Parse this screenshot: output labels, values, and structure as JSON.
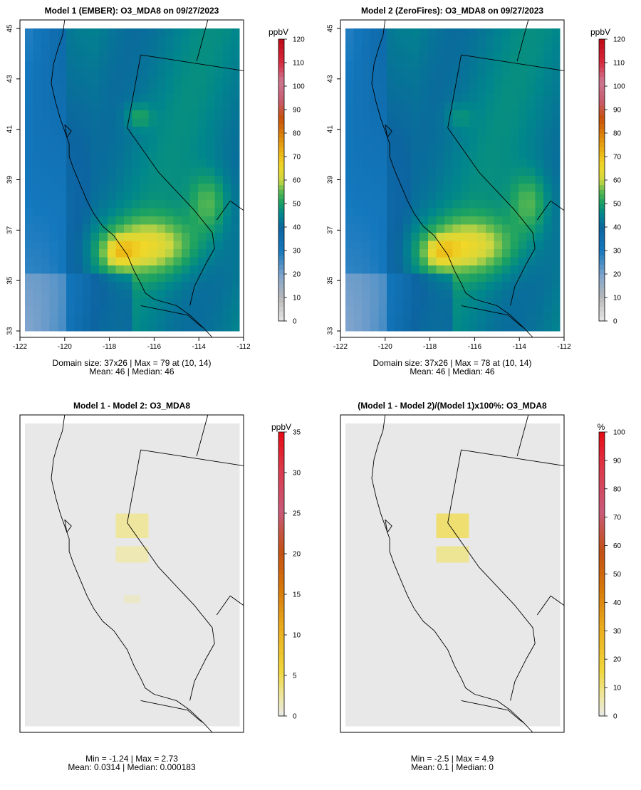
{
  "chart_data": [
    {
      "type": "heatmap",
      "title": "Model 1 (EMBER): O3_MDA8 on 09/27/2023",
      "unit": "ppbV",
      "grid": {
        "cols": 37,
        "rows": 26
      },
      "colorbar_ticks": [
        "0",
        "10",
        "20",
        "30",
        "40",
        "50",
        "60",
        "70",
        "80",
        "90",
        "100",
        "110",
        "120"
      ],
      "colorbar_range": [
        0,
        120
      ],
      "x_ticks": [
        "-122",
        "-120",
        "-118",
        "-116",
        "-114",
        "-112"
      ],
      "y_ticks": [
        "33",
        "35",
        "37",
        "39",
        "41",
        "43",
        "45"
      ],
      "lon_range": [
        -122,
        -112
      ],
      "lat_range": [
        33,
        45
      ],
      "stats_line1": "Domain size: 37x26 | Max = 79 at (10, 14)",
      "stats_line2": "Mean: 46 |  Median: 46",
      "max": 79,
      "mean": 46,
      "median": 46
    },
    {
      "type": "heatmap",
      "title": "Model 2 (ZeroFires): O3_MDA8 on 09/27/2023",
      "unit": "ppbV",
      "grid": {
        "cols": 37,
        "rows": 26
      },
      "colorbar_ticks": [
        "0",
        "10",
        "20",
        "30",
        "40",
        "50",
        "60",
        "70",
        "80",
        "90",
        "100",
        "110",
        "120"
      ],
      "colorbar_range": [
        0,
        120
      ],
      "x_ticks": [
        "-122",
        "-120",
        "-118",
        "-116",
        "-114",
        "-112"
      ],
      "y_ticks": [
        "33",
        "35",
        "37",
        "39",
        "41",
        "43",
        "45"
      ],
      "lon_range": [
        -122,
        -112
      ],
      "lat_range": [
        33,
        45
      ],
      "stats_line1": "Domain size: 37x26 | Max = 78 at (10, 14)",
      "stats_line2": "Mean: 46 |  Median: 46",
      "max": 78,
      "mean": 46,
      "median": 46
    },
    {
      "type": "heatmap",
      "title": "Model 1 - Model 2: O3_MDA8",
      "unit": "ppbV",
      "colorbar_ticks": [
        "0",
        "5",
        "10",
        "15",
        "20",
        "25",
        "30",
        "35"
      ],
      "colorbar_range": [
        0,
        35
      ],
      "stats_line1": "Min = -1.24 | Max = 2.73",
      "stats_line2": "Mean: 0.0314 |  Median: 0.000183",
      "min": -1.24,
      "max": 2.73,
      "mean": 0.0314,
      "median": 0.000183
    },
    {
      "type": "heatmap",
      "title": "(Model 1 - Model 2)/(Model 1)x100%: O3_MDA8",
      "unit": "%",
      "colorbar_ticks": [
        "0",
        "10",
        "20",
        "30",
        "40",
        "50",
        "60",
        "70",
        "80",
        "90",
        "100"
      ],
      "colorbar_range": [
        0,
        100
      ],
      "stats_line1": "Min = -2.5 | Max = 4.9",
      "stats_line2": "Mean: 0.1 |  Median: 0",
      "min": -2.5,
      "max": 4.9,
      "mean": 0.1,
      "median": 0
    }
  ]
}
